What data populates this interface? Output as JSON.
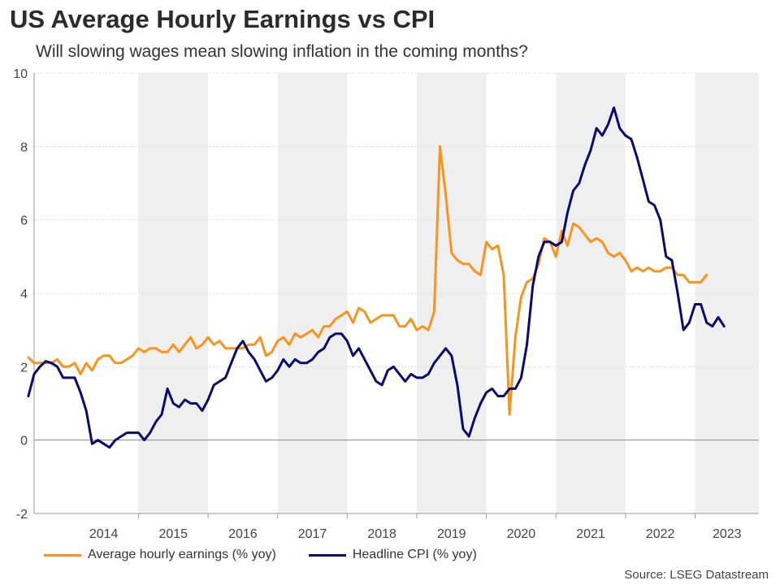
{
  "title": "US Average Hourly Earnings vs CPI",
  "subtitle": "Will slowing wages mean slowing inflation in the coming months?",
  "source": "Source: LSEG Datastream",
  "colors": {
    "earnings": "#f7941d",
    "cpi": "#0a0a6e",
    "band": "#efefef",
    "grid": "#dddddd"
  },
  "chart_data": {
    "type": "line",
    "title": "US Average Hourly Earnings vs CPI",
    "xlabel": "",
    "ylabel": "",
    "xlim": [
      2013.5,
      2023.917
    ],
    "ylim": [
      -2,
      10
    ],
    "yticks": [
      -2,
      0,
      2,
      4,
      6,
      8,
      10
    ],
    "xticks": [
      "2014",
      "2015",
      "2016",
      "2017",
      "2018",
      "2019",
      "2020",
      "2021",
      "2022",
      "2023"
    ],
    "shaded_years": [
      2015,
      2017,
      2019,
      2021,
      2023
    ],
    "start": [
      2013,
      6
    ],
    "series": [
      {
        "name": "Average hourly earnings (% yoy)",
        "color": "#f7941d",
        "values": [
          2.25,
          2.1,
          2.1,
          2.1,
          2.1,
          2.2,
          2.0,
          2.0,
          2.1,
          1.8,
          2.1,
          1.9,
          2.2,
          2.3,
          2.3,
          2.1,
          2.1,
          2.2,
          2.3,
          2.5,
          2.4,
          2.5,
          2.5,
          2.4,
          2.4,
          2.6,
          2.4,
          2.6,
          2.8,
          2.5,
          2.6,
          2.8,
          2.6,
          2.7,
          2.5,
          2.5,
          2.5,
          2.5,
          2.6,
          2.6,
          2.8,
          2.3,
          2.4,
          2.7,
          2.8,
          2.6,
          2.9,
          2.8,
          2.9,
          3.0,
          2.8,
          3.1,
          3.1,
          3.3,
          3.4,
          3.5,
          3.2,
          3.6,
          3.5,
          3.2,
          3.3,
          3.4,
          3.4,
          3.4,
          3.1,
          3.1,
          3.3,
          3.0,
          3.1,
          3.0,
          3.5,
          8.0,
          6.7,
          5.1,
          4.9,
          4.8,
          4.8,
          4.6,
          4.5,
          5.4,
          5.2,
          5.3,
          4.5,
          0.7,
          2.8,
          3.9,
          4.3,
          4.4,
          4.8,
          5.5,
          5.4,
          5.0,
          5.7,
          5.3,
          5.9,
          5.8,
          5.6,
          5.4,
          5.5,
          5.4,
          5.1,
          5.0,
          5.1,
          4.9,
          4.6,
          4.7,
          4.6,
          4.7,
          4.6,
          4.6,
          4.7,
          4.7,
          4.5,
          4.5,
          4.3,
          4.3,
          4.3,
          4.5
        ]
      },
      {
        "name": "Headline CPI (% yoy)",
        "color": "#0a0a6e",
        "values": [
          1.2,
          1.8,
          2.0,
          2.15,
          2.1,
          2.0,
          1.7,
          1.7,
          1.7,
          1.3,
          0.8,
          -0.1,
          0.0,
          -0.1,
          -0.2,
          0.0,
          0.1,
          0.2,
          0.2,
          0.2,
          0.0,
          0.2,
          0.5,
          0.7,
          1.4,
          1.0,
          0.9,
          1.1,
          1.0,
          1.0,
          0.8,
          1.1,
          1.5,
          1.6,
          1.7,
          2.1,
          2.5,
          2.7,
          2.4,
          2.2,
          1.9,
          1.6,
          1.7,
          1.9,
          2.2,
          2.0,
          2.2,
          2.1,
          2.1,
          2.2,
          2.4,
          2.5,
          2.8,
          2.9,
          2.9,
          2.7,
          2.3,
          2.5,
          2.2,
          1.9,
          1.6,
          1.5,
          1.9,
          2.0,
          1.8,
          1.6,
          1.8,
          1.7,
          1.7,
          1.8,
          2.1,
          2.3,
          2.5,
          2.3,
          1.5,
          0.3,
          0.1,
          0.6,
          1.0,
          1.3,
          1.4,
          1.2,
          1.2,
          1.4,
          1.4,
          1.7,
          2.6,
          4.2,
          5.0,
          5.4,
          5.4,
          5.3,
          5.4,
          6.2,
          6.8,
          7.0,
          7.5,
          7.9,
          8.5,
          8.3,
          8.6,
          9.06,
          8.5,
          8.3,
          8.2,
          7.7,
          7.1,
          6.5,
          6.4,
          6.0,
          5.0,
          4.9,
          4.0,
          3.0,
          3.2,
          3.7,
          3.7,
          3.2,
          3.1,
          3.35,
          3.1
        ]
      }
    ]
  }
}
